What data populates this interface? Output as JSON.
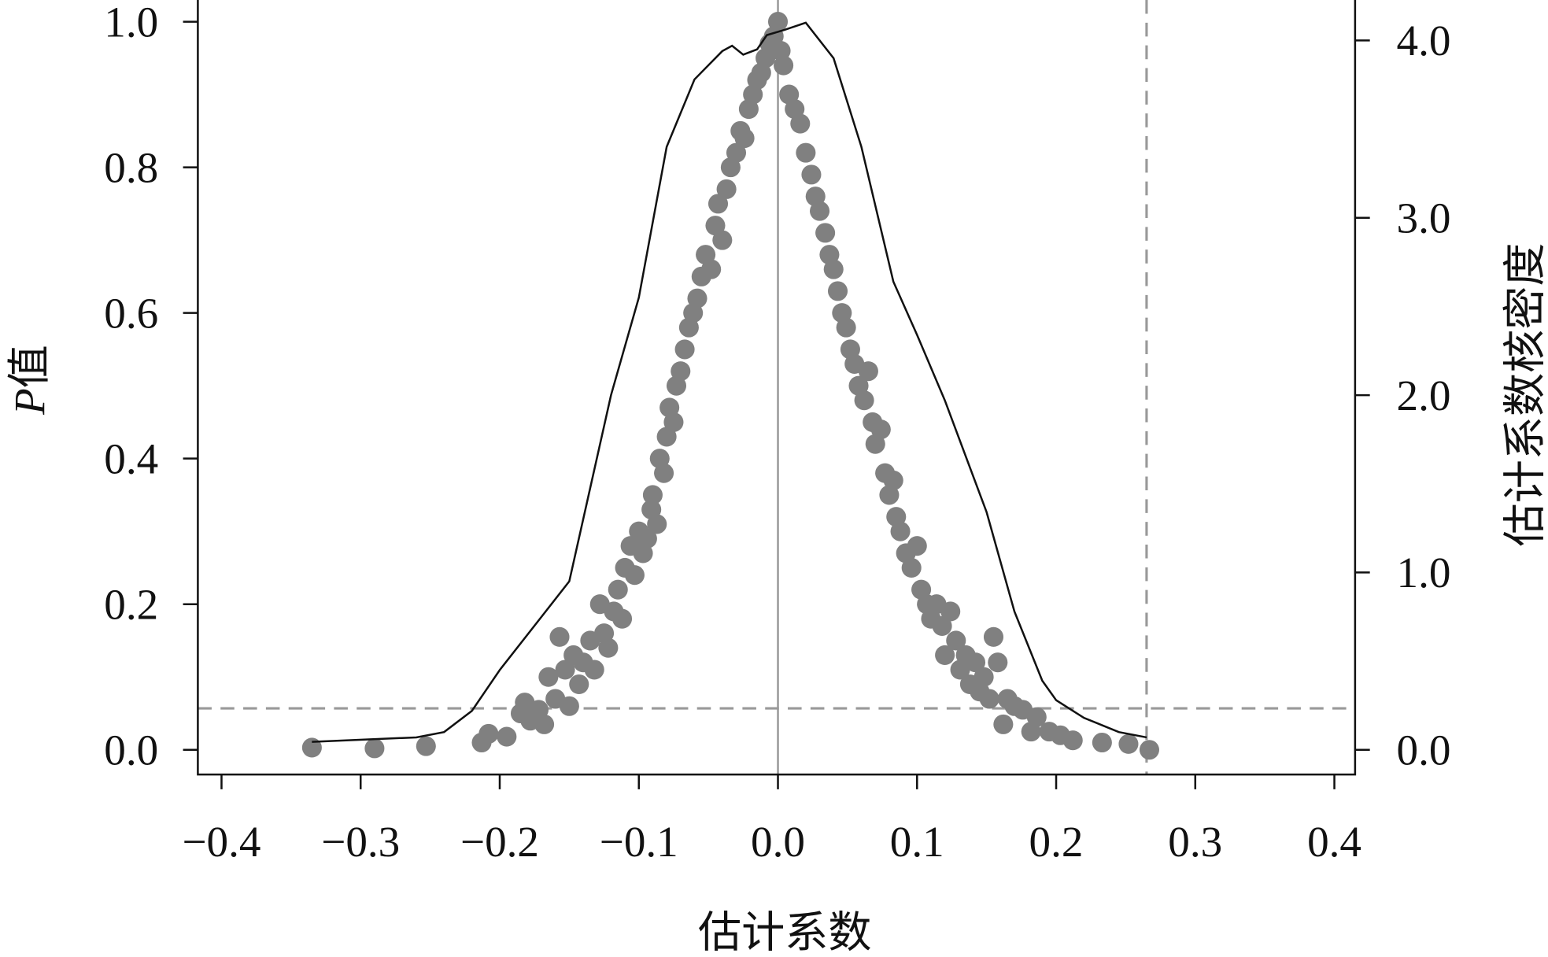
{
  "chart_data": {
    "type": "scatter",
    "title": "",
    "xlabel": "估计系数",
    "ylabel_prefix": "P",
    "ylabel_suffix": "值",
    "y2label": "估计系数核密度",
    "xlim": [
      -0.4,
      0.4
    ],
    "ylim": [
      0,
      1.0
    ],
    "y2lim": [
      0,
      4.0
    ],
    "xticks": [
      "−0.4",
      "−0.3",
      "−0.2",
      "−0.1",
      "0.0",
      "0.1",
      "0.2",
      "0.3",
      "0.4"
    ],
    "xtick_values": [
      -0.4,
      -0.3,
      -0.2,
      -0.1,
      0,
      0.1,
      0.2,
      0.3,
      0.4
    ],
    "yticks": [
      "0.0",
      "0.2",
      "0.4",
      "0.6",
      "0.8",
      "1.0"
    ],
    "ytick_values": [
      0,
      0.2,
      0.4,
      0.6,
      0.8,
      1.0
    ],
    "y2ticks": [
      "0.0",
      "1.0",
      "2.0",
      "3.0",
      "4.0"
    ],
    "y2tick_values": [
      0,
      1,
      2,
      3,
      4
    ],
    "grid": false,
    "reference_lines": {
      "vertical_solid_x": 0,
      "vertical_dashed_x": 0.265,
      "horizontal_dashed_p": 0.057
    },
    "colors": {
      "points": "#808080",
      "density": "#111111",
      "reference": "#999999"
    },
    "points": [
      [
        -0.335,
        0.003
      ],
      [
        -0.29,
        0.002
      ],
      [
        -0.253,
        0.005
      ],
      [
        -0.213,
        0.01
      ],
      [
        -0.208,
        0.022
      ],
      [
        -0.195,
        0.018
      ],
      [
        -0.185,
        0.05
      ],
      [
        -0.182,
        0.065
      ],
      [
        -0.178,
        0.04
      ],
      [
        -0.172,
        0.055
      ],
      [
        -0.168,
        0.035
      ],
      [
        -0.165,
        0.1
      ],
      [
        -0.16,
        0.07
      ],
      [
        -0.157,
        0.155
      ],
      [
        -0.153,
        0.11
      ],
      [
        -0.15,
        0.06
      ],
      [
        -0.147,
        0.13
      ],
      [
        -0.143,
        0.09
      ],
      [
        -0.14,
        0.12
      ],
      [
        -0.135,
        0.15
      ],
      [
        -0.132,
        0.11
      ],
      [
        -0.128,
        0.2
      ],
      [
        -0.125,
        0.16
      ],
      [
        -0.122,
        0.14
      ],
      [
        -0.118,
        0.19
      ],
      [
        -0.115,
        0.22
      ],
      [
        -0.112,
        0.18
      ],
      [
        -0.11,
        0.25
      ],
      [
        -0.106,
        0.28
      ],
      [
        -0.103,
        0.24
      ],
      [
        -0.1,
        0.3
      ],
      [
        -0.097,
        0.27
      ],
      [
        -0.094,
        0.29
      ],
      [
        -0.091,
        0.33
      ],
      [
        -0.09,
        0.35
      ],
      [
        -0.087,
        0.31
      ],
      [
        -0.085,
        0.4
      ],
      [
        -0.082,
        0.38
      ],
      [
        -0.08,
        0.43
      ],
      [
        -0.078,
        0.47
      ],
      [
        -0.075,
        0.45
      ],
      [
        -0.073,
        0.5
      ],
      [
        -0.07,
        0.52
      ],
      [
        -0.067,
        0.55
      ],
      [
        -0.064,
        0.58
      ],
      [
        -0.061,
        0.6
      ],
      [
        -0.058,
        0.62
      ],
      [
        -0.055,
        0.65
      ],
      [
        -0.052,
        0.68
      ],
      [
        -0.048,
        0.66
      ],
      [
        -0.045,
        0.72
      ],
      [
        -0.043,
        0.75
      ],
      [
        -0.04,
        0.7
      ],
      [
        -0.037,
        0.77
      ],
      [
        -0.034,
        0.8
      ],
      [
        -0.03,
        0.82
      ],
      [
        -0.027,
        0.85
      ],
      [
        -0.024,
        0.84
      ],
      [
        -0.021,
        0.88
      ],
      [
        -0.018,
        0.9
      ],
      [
        -0.015,
        0.92
      ],
      [
        -0.012,
        0.93
      ],
      [
        -0.009,
        0.95
      ],
      [
        -0.006,
        0.97
      ],
      [
        -0.003,
        0.98
      ],
      [
        0.0,
        1.0
      ],
      [
        0.002,
        0.96
      ],
      [
        0.004,
        0.94
      ],
      [
        0.008,
        0.9
      ],
      [
        0.012,
        0.88
      ],
      [
        0.016,
        0.86
      ],
      [
        0.02,
        0.82
      ],
      [
        0.024,
        0.79
      ],
      [
        0.027,
        0.76
      ],
      [
        0.03,
        0.74
      ],
      [
        0.034,
        0.71
      ],
      [
        0.037,
        0.68
      ],
      [
        0.04,
        0.66
      ],
      [
        0.043,
        0.63
      ],
      [
        0.046,
        0.6
      ],
      [
        0.049,
        0.58
      ],
      [
        0.052,
        0.55
      ],
      [
        0.055,
        0.53
      ],
      [
        0.058,
        0.5
      ],
      [
        0.062,
        0.48
      ],
      [
        0.065,
        0.52
      ],
      [
        0.068,
        0.45
      ],
      [
        0.07,
        0.42
      ],
      [
        0.074,
        0.44
      ],
      [
        0.077,
        0.38
      ],
      [
        0.08,
        0.35
      ],
      [
        0.083,
        0.37
      ],
      [
        0.085,
        0.32
      ],
      [
        0.088,
        0.3
      ],
      [
        0.092,
        0.27
      ],
      [
        0.096,
        0.25
      ],
      [
        0.1,
        0.28
      ],
      [
        0.103,
        0.22
      ],
      [
        0.107,
        0.2
      ],
      [
        0.11,
        0.18
      ],
      [
        0.114,
        0.2
      ],
      [
        0.118,
        0.17
      ],
      [
        0.12,
        0.13
      ],
      [
        0.124,
        0.19
      ],
      [
        0.128,
        0.15
      ],
      [
        0.131,
        0.11
      ],
      [
        0.135,
        0.13
      ],
      [
        0.138,
        0.09
      ],
      [
        0.142,
        0.12
      ],
      [
        0.145,
        0.08
      ],
      [
        0.148,
        0.1
      ],
      [
        0.152,
        0.07
      ],
      [
        0.155,
        0.155
      ],
      [
        0.158,
        0.12
      ],
      [
        0.162,
        0.035
      ],
      [
        0.165,
        0.07
      ],
      [
        0.17,
        0.06
      ],
      [
        0.176,
        0.055
      ],
      [
        0.182,
        0.025
      ],
      [
        0.186,
        0.045
      ],
      [
        0.195,
        0.025
      ],
      [
        0.203,
        0.02
      ],
      [
        0.212,
        0.013
      ],
      [
        0.233,
        0.01
      ],
      [
        0.252,
        0.008
      ],
      [
        0.267,
        0.0
      ]
    ],
    "density": [
      [
        -0.335,
        0.045
      ],
      [
        -0.26,
        0.07
      ],
      [
        -0.24,
        0.1
      ],
      [
        -0.22,
        0.22
      ],
      [
        -0.2,
        0.45
      ],
      [
        -0.17,
        0.75
      ],
      [
        -0.15,
        0.95
      ],
      [
        -0.12,
        2.0
      ],
      [
        -0.1,
        2.55
      ],
      [
        -0.08,
        3.4
      ],
      [
        -0.06,
        3.78
      ],
      [
        -0.04,
        3.94
      ],
      [
        -0.033,
        3.97
      ],
      [
        -0.025,
        3.92
      ],
      [
        -0.015,
        3.95
      ],
      [
        -0.008,
        4.03
      ],
      [
        0.005,
        4.06
      ],
      [
        0.02,
        4.1
      ],
      [
        0.04,
        3.9
      ],
      [
        0.06,
        3.4
      ],
      [
        0.083,
        2.64
      ],
      [
        0.1,
        2.34
      ],
      [
        0.12,
        1.97
      ],
      [
        0.15,
        1.34
      ],
      [
        0.17,
        0.78
      ],
      [
        0.19,
        0.39
      ],
      [
        0.2,
        0.28
      ],
      [
        0.22,
        0.18
      ],
      [
        0.245,
        0.1
      ],
      [
        0.265,
        0.07
      ]
    ]
  }
}
